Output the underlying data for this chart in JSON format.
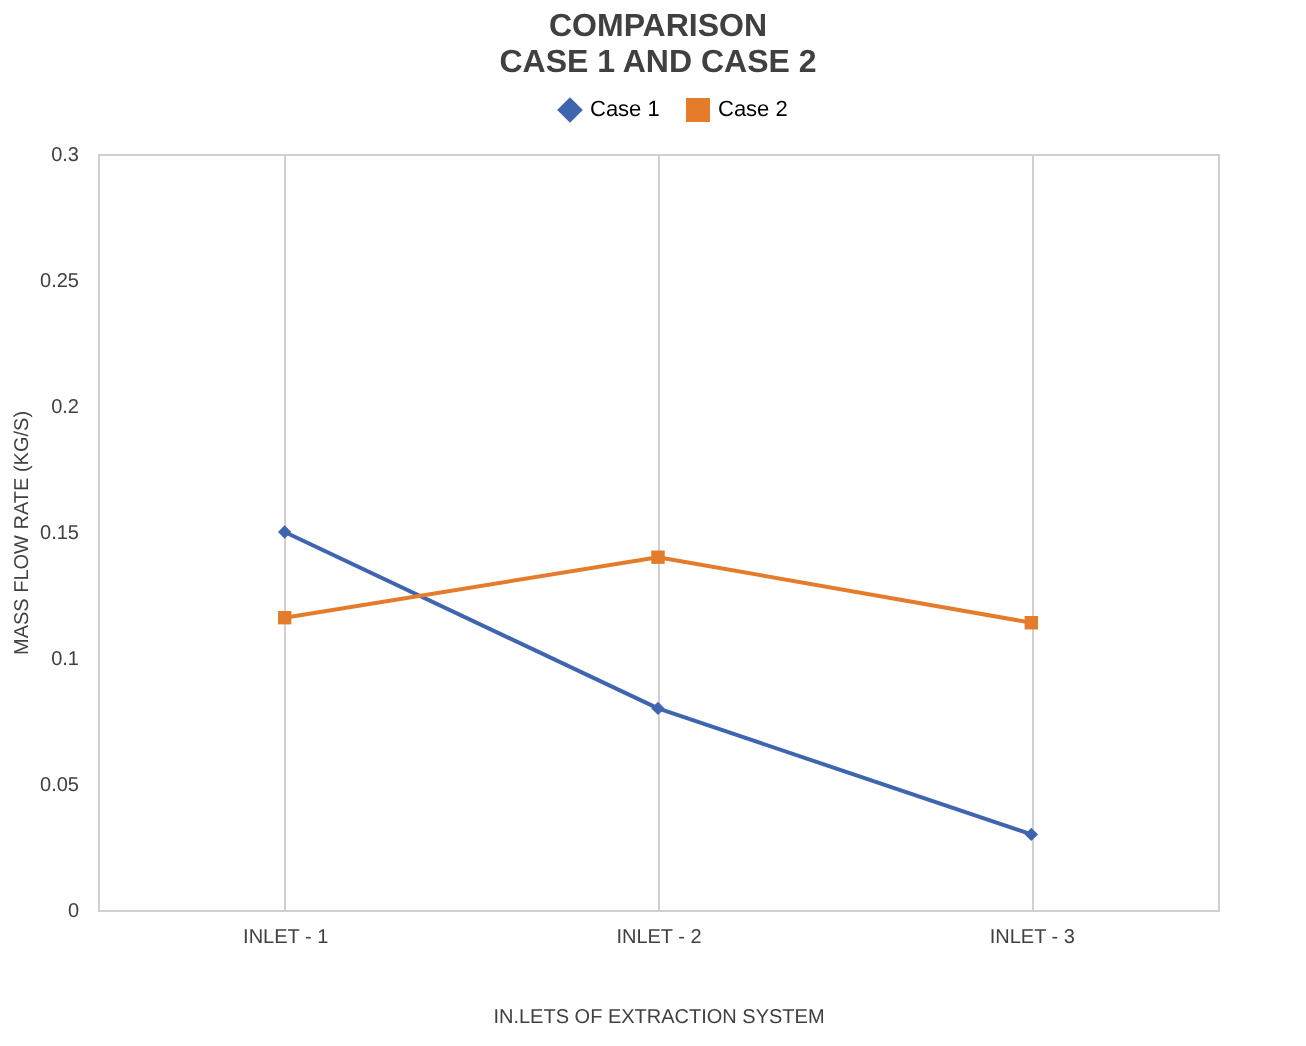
{
  "chart_data": {
    "type": "line",
    "title": "COMPARISON\nCASE 1 AND CASE 2",
    "xlabel": "IN.LETS OF EXTRACTION SYSTEM",
    "ylabel": "MASS FLOW RATE (KG/S)",
    "categories": [
      "INLET - 1",
      "INLET - 2",
      "INLET - 3"
    ],
    "series": [
      {
        "name": "Case 1",
        "color": "#4065b0",
        "marker": "diamond",
        "values": [
          0.15,
          0.08,
          0.03
        ]
      },
      {
        "name": "Case 2",
        "color": "#e57c2c",
        "marker": "square",
        "values": [
          0.116,
          0.14,
          0.114
        ]
      }
    ],
    "ylim": [
      0,
      0.3
    ],
    "yticks": [
      0,
      0.05,
      0.1,
      0.15,
      0.2,
      0.25,
      0.3
    ],
    "grid": "x",
    "legend": "top"
  }
}
